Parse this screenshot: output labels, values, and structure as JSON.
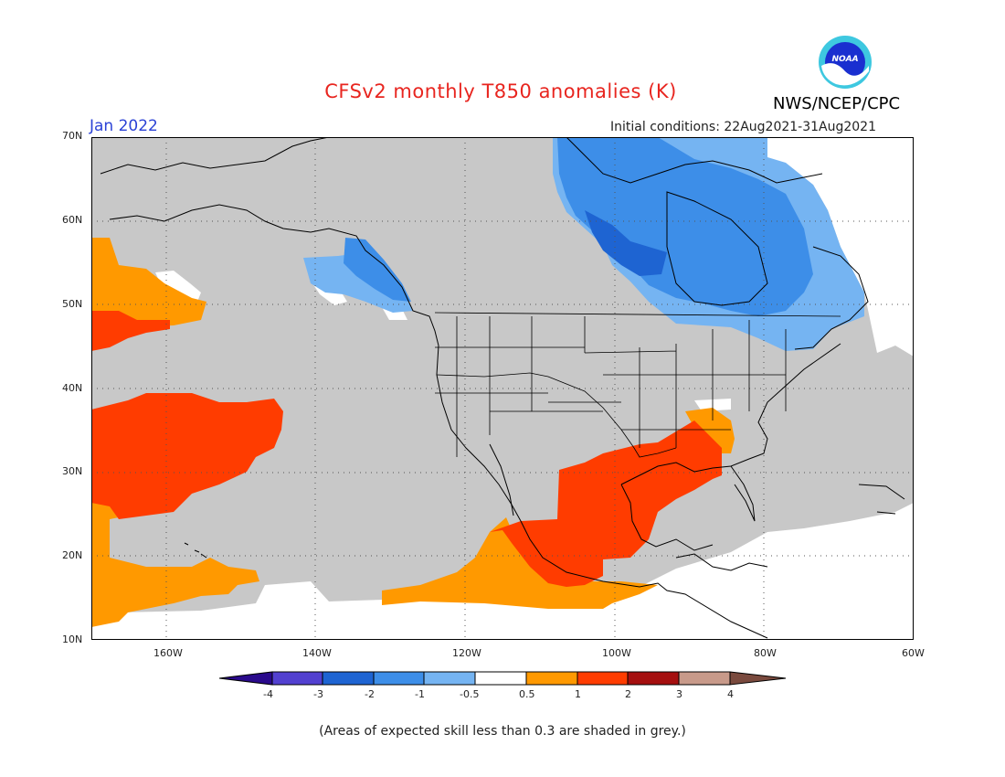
{
  "title": "CFSv2 monthly T850 anomalies (K)",
  "agency": "NWS/NCEP/CPC",
  "logo_text": "NOAA",
  "valid_month": "Jan 2022",
  "initial_conditions": "Initial conditions: 22Aug2021-31Aug2021",
  "footnote": "(Areas of expected skill less than 0.3 are shaded in grey.)",
  "map": {
    "lat_labels": [
      "70N",
      "60N",
      "50N",
      "40N",
      "30N",
      "20N",
      "10N"
    ],
    "lon_labels": [
      "160W",
      "140W",
      "120W",
      "100W",
      "80W",
      "60W"
    ],
    "colors": {
      "low_skill_grey": "#c8c8c8",
      "ocean_white": "#ffffff",
      "anom_1_2": "#ff3c00",
      "anom_05_1": "#ff9900",
      "anom_m05_m1": "#75b4f2",
      "anom_m1_m2": "#3d8ee8",
      "anom_m2_m3": "#1e64d2"
    }
  },
  "colorbar": {
    "labels": [
      "-4",
      "-3",
      "-2",
      "-1",
      "-0.5",
      "0.5",
      "1",
      "2",
      "3",
      "4"
    ],
    "colors": [
      "#2a0a8c",
      "#5240d0",
      "#1e64d2",
      "#3d8ee8",
      "#75b4f2",
      "#ffffff",
      "#ff9900",
      "#ff3c00",
      "#a50f0f",
      "#c89a8a",
      "#7a4a3e"
    ]
  }
}
